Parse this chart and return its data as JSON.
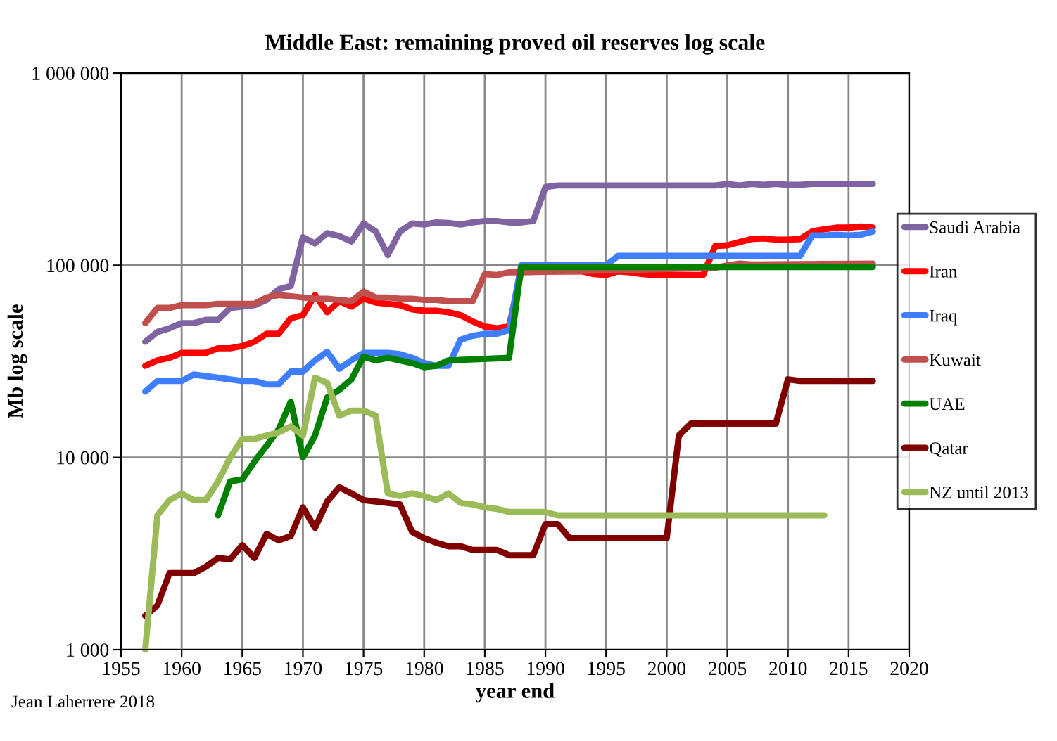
{
  "chart_data": {
    "type": "line",
    "title": "Middle East: remaining proved oil reserves log scale",
    "xlabel": "year end",
    "ylabel": "Mb log scale",
    "annotations": [
      "Jean Laherrere 2018"
    ],
    "log": "y",
    "grid": true,
    "legend": "right",
    "marker": "none",
    "line_style": "solid",
    "xlim": [
      1955,
      2020
    ],
    "xticks": [
      1955,
      1960,
      1965,
      1970,
      1975,
      1980,
      1985,
      1990,
      1995,
      2000,
      2005,
      2010,
      2015,
      2020
    ],
    "ylim": [
      1000,
      1000000
    ],
    "yticks": [
      {
        "value": 1000,
        "label": "1 000"
      },
      {
        "value": 10000,
        "label": "10 000"
      },
      {
        "value": 100000,
        "label": "100 000"
      },
      {
        "value": 1000000,
        "label": "1 000 000"
      }
    ],
    "series": [
      {
        "name": "Saudi Arabia",
        "color": "#8064a2",
        "x": [
          1957,
          1958,
          1959,
          1960,
          1961,
          1962,
          1963,
          1964,
          1965,
          1966,
          1967,
          1968,
          1969,
          1970,
          1971,
          1972,
          1973,
          1974,
          1975,
          1976,
          1977,
          1978,
          1979,
          1980,
          1981,
          1982,
          1983,
          1984,
          1985,
          1986,
          1987,
          1988,
          1989,
          1990,
          1991,
          2004,
          2005,
          2006,
          2007,
          2008,
          2009,
          2010,
          2011,
          2012,
          2017
        ],
        "values": [
          40000,
          45000,
          47000,
          50000,
          50000,
          52000,
          52000,
          60000,
          61000,
          62000,
          66000,
          75000,
          78000,
          140000,
          130000,
          147000,
          142000,
          133000,
          165000,
          150000,
          113000,
          150000,
          165000,
          163000,
          167000,
          166000,
          163000,
          167000,
          170000,
          170000,
          167000,
          167000,
          170000,
          255000,
          260000,
          260000,
          265000,
          260000,
          265000,
          262000,
          265000,
          262000,
          262000,
          265000,
          265000
        ]
      },
      {
        "name": "Iran",
        "color": "#ff0000",
        "x": [
          1957,
          1958,
          1959,
          1960,
          1961,
          1962,
          1963,
          1964,
          1965,
          1966,
          1967,
          1968,
          1969,
          1970,
          1971,
          1972,
          1973,
          1974,
          1975,
          1976,
          1977,
          1978,
          1979,
          1980,
          1981,
          1982,
          1983,
          1984,
          1985,
          1986,
          1987,
          1988,
          1993,
          1994,
          1995,
          1996,
          1997,
          1998,
          1999,
          2003,
          2004,
          2005,
          2006,
          2007,
          2008,
          2009,
          2010,
          2011,
          2012,
          2013,
          2014,
          2015,
          2016,
          2017
        ],
        "values": [
          30000,
          32000,
          33000,
          35000,
          35000,
          35000,
          37000,
          37000,
          38000,
          40000,
          44000,
          44000,
          53000,
          55000,
          70000,
          57000,
          65000,
          61000,
          67000,
          64000,
          63000,
          62000,
          59000,
          58000,
          58000,
          57000,
          55000,
          51000,
          48000,
          47000,
          48000,
          93000,
          93000,
          90000,
          89000,
          93000,
          92000,
          90000,
          89000,
          89000,
          126000,
          127000,
          132000,
          137000,
          138000,
          136000,
          136000,
          137000,
          150000,
          154000,
          157000,
          157000,
          159000,
          157000
        ]
      },
      {
        "name": "Iraq",
        "color": "#3f7fff",
        "x": [
          1957,
          1958,
          1959,
          1960,
          1961,
          1962,
          1963,
          1964,
          1965,
          1966,
          1967,
          1968,
          1969,
          1970,
          1971,
          1972,
          1973,
          1974,
          1975,
          1976,
          1977,
          1978,
          1979,
          1980,
          1981,
          1982,
          1983,
          1984,
          1985,
          1986,
          1987,
          1988,
          1995,
          1996,
          2011,
          2012,
          2013,
          2014,
          2015,
          2016,
          2017
        ],
        "values": [
          22000,
          25000,
          25000,
          25000,
          27000,
          26500,
          26000,
          25500,
          25000,
          25000,
          24000,
          24000,
          28000,
          28000,
          32000,
          35500,
          29000,
          32000,
          35000,
          35000,
          35000,
          34500,
          33000,
          31000,
          30000,
          30000,
          41000,
          43000,
          44000,
          44000,
          46000,
          100000,
          100000,
          112000,
          112000,
          143000,
          143000,
          144000,
          143000,
          144000,
          150000
        ]
      },
      {
        "name": "Kuwait",
        "color": "#c0504d",
        "x": [
          1957,
          1958,
          1959,
          1960,
          1961,
          1962,
          1963,
          1964,
          1965,
          1966,
          1967,
          1968,
          1969,
          1970,
          1971,
          1972,
          1973,
          1974,
          1975,
          1976,
          1977,
          1978,
          1979,
          1980,
          1981,
          1982,
          1983,
          1984,
          1985,
          1986,
          1987,
          1988,
          2004,
          2005,
          2006,
          2007,
          2017
        ],
        "values": [
          50000,
          60000,
          60000,
          62000,
          62000,
          62000,
          63000,
          63000,
          63000,
          63000,
          68000,
          70000,
          69000,
          68000,
          67000,
          67000,
          66000,
          65000,
          73000,
          68000,
          68000,
          67000,
          67000,
          66000,
          66000,
          65000,
          65000,
          65000,
          90000,
          89000,
          92000,
          92000,
          97000,
          100000,
          102000,
          101000,
          102000
        ]
      },
      {
        "name": "UAE",
        "color": "#008000",
        "x": [
          1963,
          1964,
          1965,
          1966,
          1967,
          1968,
          1969,
          1970,
          1971,
          1972,
          1973,
          1974,
          1975,
          1976,
          1977,
          1978,
          1979,
          1980,
          1981,
          1982,
          1987,
          1988,
          2017
        ],
        "values": [
          5000,
          7500,
          7700,
          9500,
          11500,
          14000,
          19500,
          10000,
          13000,
          20500,
          22500,
          25500,
          33500,
          32000,
          33000,
          32000,
          31000,
          29500,
          30000,
          32000,
          33000,
          98000,
          98000
        ]
      },
      {
        "name": "Qatar",
        "color": "#800000",
        "x": [
          1957,
          1958,
          1959,
          1960,
          1961,
          1962,
          1963,
          1964,
          1965,
          1966,
          1967,
          1968,
          1969,
          1970,
          1971,
          1972,
          1973,
          1974,
          1975,
          1976,
          1977,
          1978,
          1979,
          1980,
          1981,
          1982,
          1983,
          1984,
          1985,
          1986,
          1987,
          1988,
          1989,
          1990,
          1991,
          1992,
          2000,
          2001,
          2002,
          2009,
          2010,
          2011,
          2017
        ],
        "values": [
          1500,
          1700,
          2500,
          2500,
          2500,
          2700,
          3000,
          2950,
          3500,
          3000,
          4000,
          3700,
          3900,
          5500,
          4300,
          5900,
          7000,
          6500,
          6000,
          5900,
          5800,
          5700,
          4100,
          3800,
          3600,
          3450,
          3450,
          3300,
          3300,
          3300,
          3100,
          3100,
          3100,
          4500,
          4500,
          3800,
          3800,
          13000,
          15000,
          15000,
          25500,
          25000,
          25000
        ]
      },
      {
        "name": "NZ until 2013",
        "color": "#9bbb59",
        "x": [
          1957,
          1958,
          1959,
          1960,
          1961,
          1962,
          1963,
          1964,
          1965,
          1966,
          1967,
          1968,
          1969,
          1970,
          1971,
          1972,
          1973,
          1974,
          1975,
          1976,
          1977,
          1978,
          1979,
          1980,
          1981,
          1982,
          1983,
          1984,
          1985,
          1986,
          1987,
          1990,
          1991,
          2013
        ],
        "values": [
          1000,
          5000,
          6000,
          6500,
          6000,
          6000,
          7500,
          10000,
          12500,
          12500,
          13000,
          13500,
          14500,
          13000,
          26000,
          24500,
          16500,
          17500,
          17500,
          16500,
          6500,
          6300,
          6500,
          6300,
          6000,
          6500,
          5800,
          5700,
          5500,
          5400,
          5200,
          5200,
          5000,
          5000
        ]
      }
    ]
  }
}
